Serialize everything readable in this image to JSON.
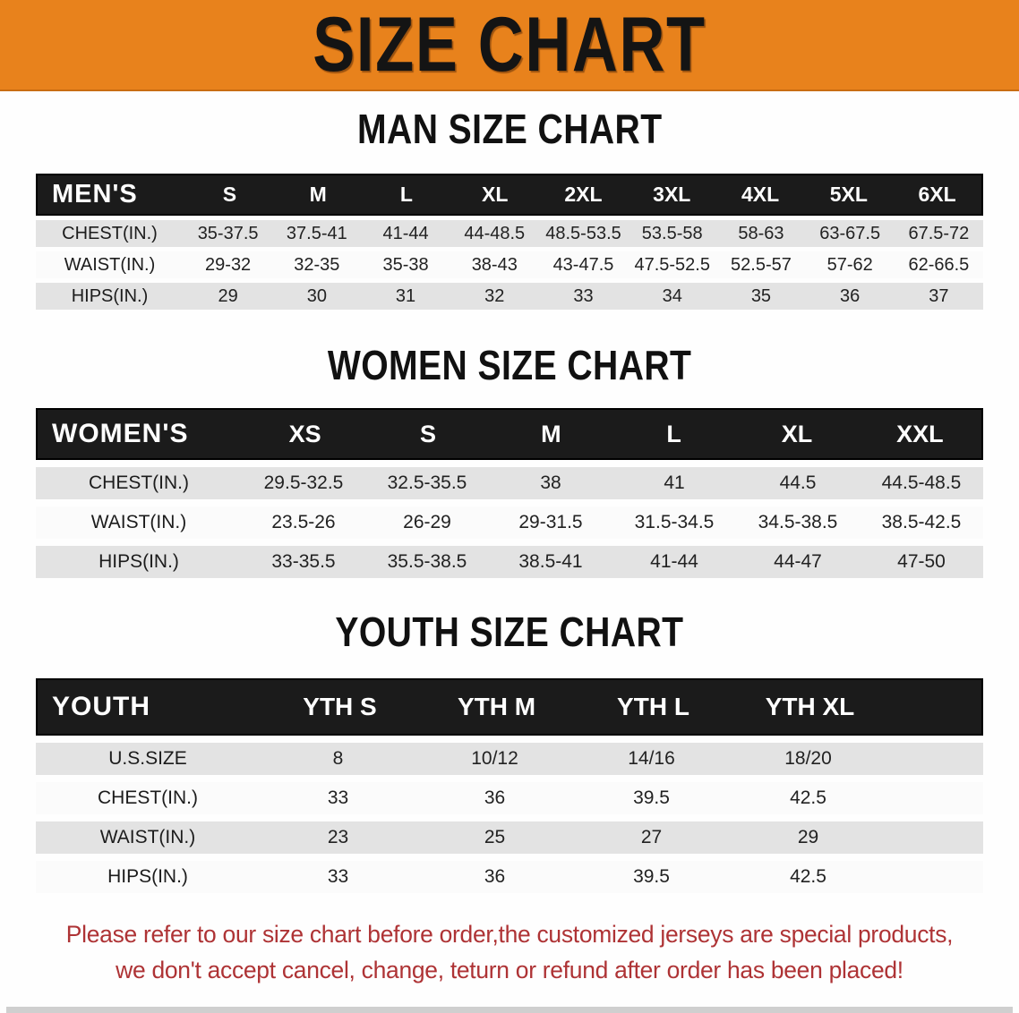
{
  "banner": {
    "title": "SIZE CHART",
    "bg_color": "#E8821C"
  },
  "colors": {
    "table_header_bg": "#1B1B1B",
    "row_gray": "#E3E3E3",
    "row_white": "#FBFBFB",
    "disclaimer_red": "#AE3335"
  },
  "sections": [
    {
      "heading": "MAN SIZE CHART",
      "label": "MEN'S",
      "sizes": [
        "S",
        "M",
        "L",
        "XL",
        "2XL",
        "3XL",
        "4XL",
        "5XL",
        "6XL"
      ],
      "rows": [
        {
          "label": "CHEST(IN.)",
          "values": [
            "35-37.5",
            "37.5-41",
            "41-44",
            "44-48.5",
            "48.5-53.5",
            "53.5-58",
            "58-63",
            "63-67.5",
            "67.5-72"
          ]
        },
        {
          "label": "WAIST(IN.)",
          "values": [
            "29-32",
            "32-35",
            "35-38",
            "38-43",
            "43-47.5",
            "47.5-52.5",
            "52.5-57",
            "57-62",
            "62-66.5"
          ]
        },
        {
          "label": "HIPS(IN.)",
          "values": [
            "29",
            "30",
            "31",
            "32",
            "33",
            "34",
            "35",
            "36",
            "37"
          ]
        }
      ]
    },
    {
      "heading": "WOMEN SIZE CHART",
      "label": "WOMEN'S",
      "sizes": [
        "XS",
        "S",
        "M",
        "L",
        "XL",
        "XXL"
      ],
      "rows": [
        {
          "label": "CHEST(IN.)",
          "values": [
            "29.5-32.5",
            "32.5-35.5",
            "38",
            "41",
            "44.5",
            "44.5-48.5"
          ]
        },
        {
          "label": "WAIST(IN.)",
          "values": [
            "23.5-26",
            "26-29",
            "29-31.5",
            "31.5-34.5",
            "34.5-38.5",
            "38.5-42.5"
          ]
        },
        {
          "label": "HIPS(IN.)",
          "values": [
            "33-35.5",
            "35.5-38.5",
            "38.5-41",
            "41-44",
            "44-47",
            "47-50"
          ]
        }
      ]
    },
    {
      "heading": "YOUTH SIZE CHART",
      "label": "YOUTH",
      "sizes": [
        "YTH S",
        "YTH M",
        "YTH L",
        "YTH XL"
      ],
      "rows": [
        {
          "label": "U.S.SIZE",
          "values": [
            "8",
            "10/12",
            "14/16",
            "18/20"
          ]
        },
        {
          "label": "CHEST(IN.)",
          "values": [
            "33",
            "36",
            "39.5",
            "42.5"
          ]
        },
        {
          "label": "WAIST(IN.)",
          "values": [
            "23",
            "25",
            "27",
            "29"
          ]
        },
        {
          "label": "HIPS(IN.)",
          "values": [
            "33",
            "36",
            "39.5",
            "42.5"
          ]
        }
      ]
    }
  ],
  "disclaimer": {
    "line1": "Please refer to our size chart before order,the customized jerseys are special products,",
    "line2": "we don't accept cancel, change, teturn or refund after order has been placed!"
  }
}
